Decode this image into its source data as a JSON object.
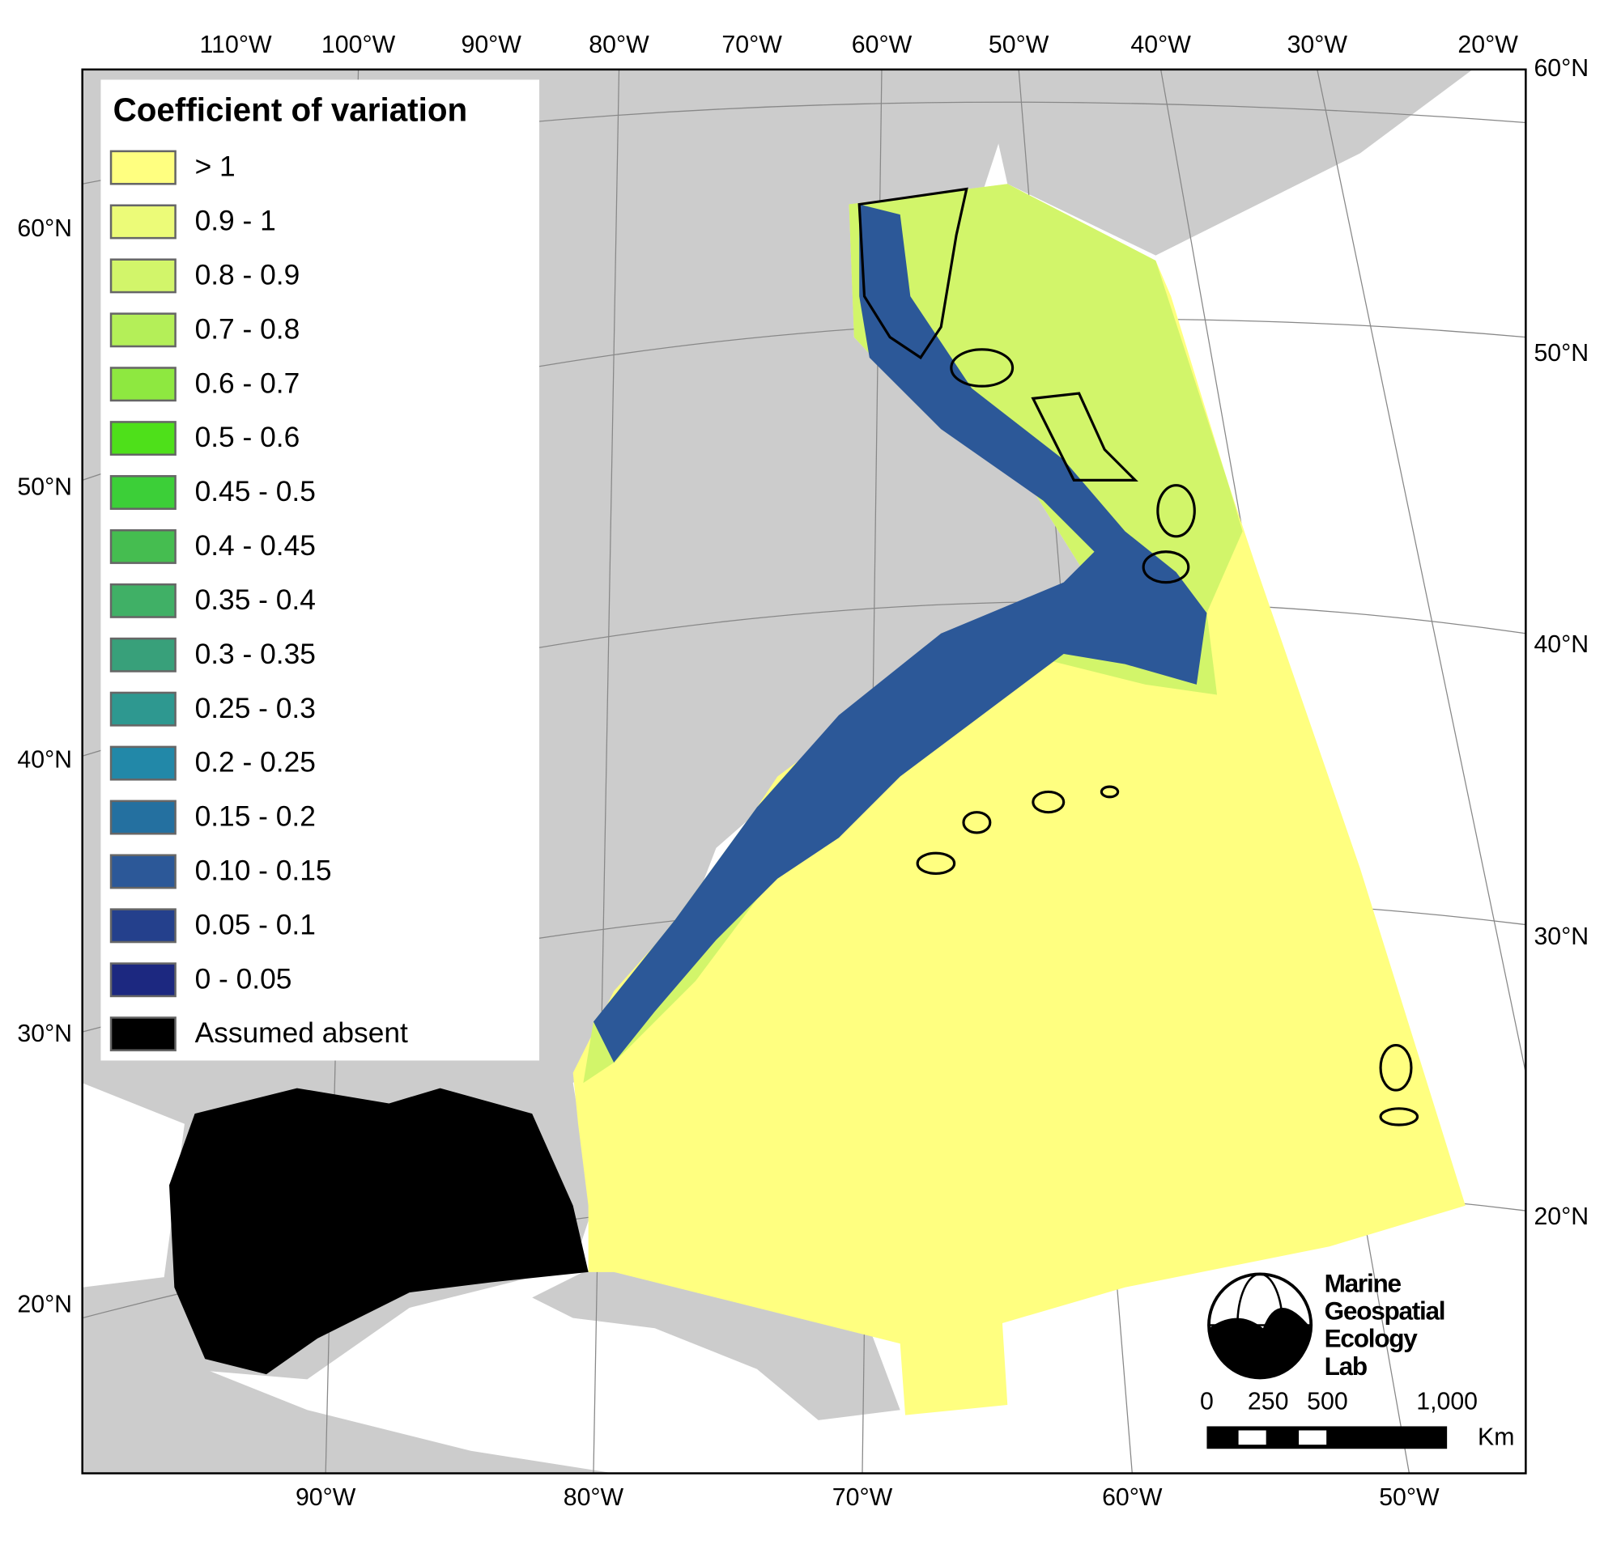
{
  "legend": {
    "title": "Coefficient of variation",
    "items": [
      {
        "label": "> 1",
        "color": "#ffff80"
      },
      {
        "label": "0.9 - 1",
        "color": "#ecfb78"
      },
      {
        "label": "0.8 - 0.9",
        "color": "#d2f56a"
      },
      {
        "label": "0.7 - 0.8",
        "color": "#b4ef58"
      },
      {
        "label": "0.6 - 0.7",
        "color": "#8ee840"
      },
      {
        "label": "0.5 - 0.6",
        "color": "#4ee01a"
      },
      {
        "label": "0.45 - 0.5",
        "color": "#3ccf38"
      },
      {
        "label": "0.4 - 0.45",
        "color": "#45bd50"
      },
      {
        "label": "0.35 - 0.4",
        "color": "#40b066"
      },
      {
        "label": "0.3 - 0.35",
        "color": "#38a07a"
      },
      {
        "label": "0.25 - 0.3",
        "color": "#2e9890"
      },
      {
        "label": "0.2 - 0.25",
        "color": "#2288a8"
      },
      {
        "label": "0.15 - 0.2",
        "color": "#2470a0"
      },
      {
        "label": "0.10 - 0.15",
        "color": "#2c5898"
      },
      {
        "label": "0.05 - 0.1",
        "color": "#24408c"
      },
      {
        "label": "0 - 0.05",
        "color": "#1c2880"
      },
      {
        "label": "Assumed absent",
        "color": "#000000"
      }
    ]
  },
  "graticule": {
    "top": [
      "110°W",
      "100°W",
      "90°W",
      "80°W",
      "70°W",
      "60°W",
      "50°W",
      "40°W",
      "30°W",
      "20°W"
    ],
    "bottom": [
      "90°W",
      "80°W",
      "70°W",
      "60°W",
      "50°W"
    ],
    "left": [
      "60°N",
      "50°N",
      "40°N",
      "30°N",
      "20°N"
    ],
    "right": [
      "60°N",
      "50°N",
      "40°N",
      "30°N",
      "20°N"
    ]
  },
  "scale_bar": {
    "labels": [
      "0",
      "250",
      "500",
      "1,000"
    ],
    "unit": "Km"
  },
  "logo": {
    "lines": [
      "Marine",
      "Geospatial",
      "Ecology",
      "Lab"
    ]
  }
}
